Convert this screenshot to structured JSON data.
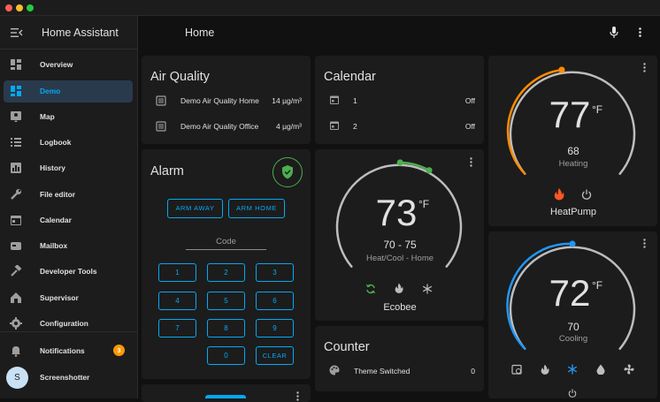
{
  "app": {
    "title": "Home Assistant"
  },
  "header": {
    "title": "Home"
  },
  "sidebar": {
    "items": [
      {
        "label": "Overview",
        "icon": "overview-icon"
      },
      {
        "label": "Demo",
        "icon": "dashboard-icon",
        "active": true
      },
      {
        "label": "Map",
        "icon": "map-icon"
      },
      {
        "label": "Logbook",
        "icon": "logbook-icon"
      },
      {
        "label": "History",
        "icon": "history-icon"
      },
      {
        "label": "File editor",
        "icon": "wrench-icon"
      },
      {
        "label": "Calendar",
        "icon": "calendar-icon"
      },
      {
        "label": "Mailbox",
        "icon": "mailbox-icon"
      },
      {
        "label": "Developer Tools",
        "icon": "hammer-icon"
      },
      {
        "label": "Supervisor",
        "icon": "supervisor-icon"
      },
      {
        "label": "Configuration",
        "icon": "gear-icon"
      }
    ],
    "notifications": {
      "label": "Notifications",
      "count": "3"
    },
    "user": {
      "label": "Screenshotter",
      "initial": "S"
    }
  },
  "air_quality": {
    "title": "Air Quality",
    "rows": [
      {
        "name": "Demo Air Quality Home",
        "value": "14 µg/m³"
      },
      {
        "name": "Demo Air Quality Office",
        "value": "4 µg/m³"
      }
    ]
  },
  "calendar": {
    "title": "Calendar",
    "rows": [
      {
        "name": "1",
        "value": "Off"
      },
      {
        "name": "2",
        "value": "Off"
      }
    ]
  },
  "alarm": {
    "title": "Alarm",
    "arm_away": "ARM AWAY",
    "arm_home": "ARM HOME",
    "code_label": "Code",
    "keys": [
      "1",
      "2",
      "3",
      "4",
      "5",
      "6",
      "7",
      "8",
      "9",
      "0"
    ],
    "clear": "CLEAR"
  },
  "ecobee": {
    "temp": "73",
    "unit": "°F",
    "range": "70 - 75",
    "mode": "Heat/Cool - Home",
    "name": "Ecobee"
  },
  "heatpump": {
    "temp": "77",
    "unit": "°F",
    "target": "68",
    "mode": "Heating",
    "name": "HeatPump"
  },
  "cooling": {
    "temp": "72",
    "unit": "°F",
    "target": "70",
    "mode": "Cooling"
  },
  "counter": {
    "title": "Counter",
    "row": {
      "name": "Theme Switched",
      "value": "0"
    }
  },
  "colors": {
    "accent": "#03a9f4",
    "heat": "#ff8c00",
    "cool": "#2196f3",
    "auto": "#4caf50",
    "alarm": "#4caf50"
  }
}
